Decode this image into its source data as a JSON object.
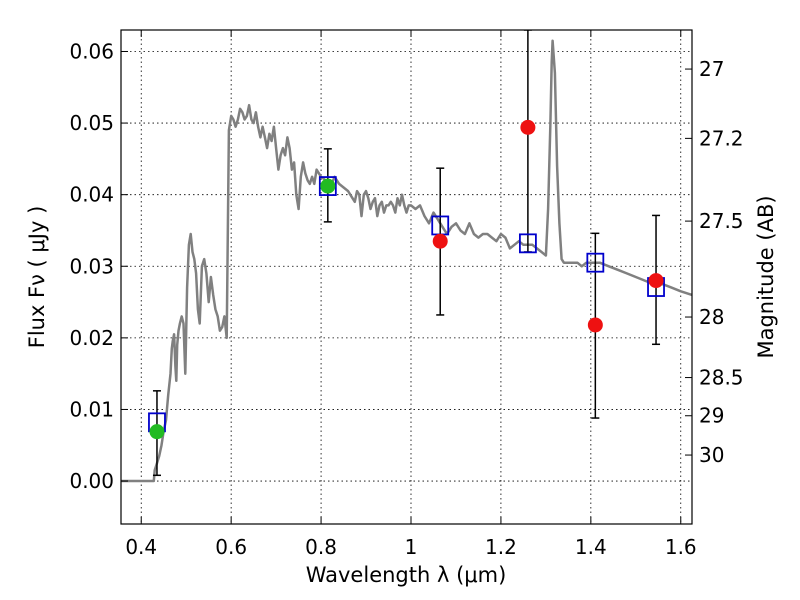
{
  "chart_data": {
    "type": "scatter",
    "title": "",
    "xlabel": "Wavelength  λ (μm)",
    "ylabel": "Flux  Fν  ( μJy )",
    "y2label": "Magnitude (AB)",
    "xlim": [
      0.355,
      1.625
    ],
    "ylim": [
      -0.006,
      0.063
    ],
    "grid": true,
    "x_ticks": [
      {
        "v": 0.4,
        "label": "0.4"
      },
      {
        "v": 0.6,
        "label": "0.6"
      },
      {
        "v": 0.8,
        "label": "0.8"
      },
      {
        "v": 1.0,
        "label": "1"
      },
      {
        "v": 1.2,
        "label": "1.2"
      },
      {
        "v": 1.4,
        "label": "1.4"
      },
      {
        "v": 1.6,
        "label": "1.6"
      }
    ],
    "y_ticks": [
      {
        "v": 0.0,
        "label": "0.00"
      },
      {
        "v": 0.01,
        "label": "0.01"
      },
      {
        "v": 0.02,
        "label": "0.02"
      },
      {
        "v": 0.03,
        "label": "0.03"
      },
      {
        "v": 0.04,
        "label": "0.04"
      },
      {
        "v": 0.05,
        "label": "0.05"
      },
      {
        "v": 0.06,
        "label": "0.06"
      }
    ],
    "y2_ticks": [
      {
        "mag": 27,
        "label": "27"
      },
      {
        "mag": 27.2,
        "label": "27.2"
      },
      {
        "mag": 27.5,
        "label": "27.5"
      },
      {
        "mag": 28,
        "label": "28"
      },
      {
        "mag": 28.5,
        "label": "28.5"
      },
      {
        "mag": 29,
        "label": "29"
      },
      {
        "mag": 30,
        "label": "30"
      }
    ],
    "series": [
      {
        "kind": "line",
        "color": "#808080",
        "x": [
          0.355,
          0.428,
          0.43,
          0.435,
          0.44,
          0.445,
          0.45,
          0.455,
          0.46,
          0.465,
          0.468,
          0.47,
          0.473,
          0.476,
          0.478,
          0.48,
          0.483,
          0.486,
          0.49,
          0.494,
          0.498,
          0.502,
          0.506,
          0.51,
          0.514,
          0.518,
          0.522,
          0.526,
          0.53,
          0.535,
          0.54,
          0.545,
          0.55,
          0.555,
          0.56,
          0.565,
          0.57,
          0.575,
          0.58,
          0.585,
          0.59,
          0.595,
          0.6,
          0.605,
          0.61,
          0.615,
          0.62,
          0.625,
          0.63,
          0.635,
          0.64,
          0.645,
          0.65,
          0.655,
          0.66,
          0.665,
          0.67,
          0.675,
          0.68,
          0.685,
          0.69,
          0.695,
          0.7,
          0.705,
          0.71,
          0.715,
          0.72,
          0.725,
          0.73,
          0.735,
          0.74,
          0.745,
          0.75,
          0.755,
          0.76,
          0.765,
          0.77,
          0.775,
          0.78,
          0.785,
          0.79,
          0.795,
          0.8,
          0.81,
          0.82,
          0.83,
          0.84,
          0.85,
          0.86,
          0.87,
          0.875,
          0.88,
          0.885,
          0.89,
          0.895,
          0.9,
          0.905,
          0.91,
          0.915,
          0.92,
          0.925,
          0.93,
          0.935,
          0.94,
          0.945,
          0.95,
          0.955,
          0.96,
          0.965,
          0.97,
          0.975,
          0.98,
          0.985,
          0.99,
          0.995,
          1.0,
          1.01,
          1.02,
          1.03,
          1.04,
          1.05,
          1.06,
          1.07,
          1.08,
          1.09,
          1.1,
          1.11,
          1.12,
          1.13,
          1.14,
          1.15,
          1.16,
          1.17,
          1.18,
          1.19,
          1.2,
          1.21,
          1.22,
          1.23,
          1.24,
          1.25,
          1.26,
          1.27,
          1.28,
          1.29,
          1.3,
          1.305,
          1.31,
          1.313,
          1.315,
          1.32,
          1.325,
          1.33,
          1.335,
          1.34,
          1.35,
          1.36,
          1.37,
          1.38,
          1.39,
          1.4,
          1.42,
          1.44,
          1.46,
          1.48,
          1.5,
          1.52,
          1.54,
          1.56,
          1.58,
          1.6,
          1.625
        ],
        "y": [
          0.0,
          0.0,
          0.0015,
          0.0025,
          0.0035,
          0.005,
          0.007,
          0.0085,
          0.012,
          0.015,
          0.0185,
          0.0195,
          0.0205,
          0.016,
          0.014,
          0.019,
          0.021,
          0.022,
          0.023,
          0.022,
          0.015,
          0.027,
          0.033,
          0.0345,
          0.032,
          0.031,
          0.029,
          0.024,
          0.022,
          0.03,
          0.031,
          0.029,
          0.025,
          0.0285,
          0.026,
          0.024,
          0.023,
          0.021,
          0.0215,
          0.023,
          0.02,
          0.049,
          0.051,
          0.0505,
          0.0495,
          0.0505,
          0.052,
          0.0515,
          0.0505,
          0.051,
          0.0525,
          0.0505,
          0.05,
          0.0515,
          0.0495,
          0.048,
          0.0495,
          0.048,
          0.0465,
          0.0485,
          0.0475,
          0.0495,
          0.0465,
          0.0435,
          0.0455,
          0.0465,
          0.0455,
          0.048,
          0.0465,
          0.0435,
          0.0445,
          0.04,
          0.038,
          0.0425,
          0.0445,
          0.043,
          0.042,
          0.0415,
          0.0425,
          0.0415,
          0.0435,
          0.043,
          0.0425,
          0.042,
          0.041,
          0.0425,
          0.0415,
          0.041,
          0.0405,
          0.0395,
          0.039,
          0.0405,
          0.04,
          0.037,
          0.04,
          0.0405,
          0.0395,
          0.038,
          0.039,
          0.0395,
          0.037,
          0.0385,
          0.039,
          0.0375,
          0.0385,
          0.0385,
          0.039,
          0.0385,
          0.0375,
          0.0395,
          0.0385,
          0.04,
          0.0385,
          0.0375,
          0.0385,
          0.0385,
          0.038,
          0.0385,
          0.037,
          0.036,
          0.0375,
          0.0365,
          0.0355,
          0.0345,
          0.0355,
          0.036,
          0.035,
          0.0345,
          0.036,
          0.0345,
          0.034,
          0.0345,
          0.0345,
          0.034,
          0.0335,
          0.0345,
          0.034,
          0.0325,
          0.033,
          0.0335,
          0.033,
          0.033,
          0.033,
          0.0325,
          0.032,
          0.0315,
          0.038,
          0.05,
          0.0585,
          0.0615,
          0.057,
          0.044,
          0.036,
          0.031,
          0.0305,
          0.0305,
          0.0305,
          0.0305,
          0.03,
          0.0305,
          0.0305,
          0.0305,
          0.03,
          0.0295,
          0.029,
          0.0285,
          0.028,
          0.0275,
          0.0275,
          0.027,
          0.0265,
          0.026
        ]
      },
      {
        "kind": "errorbar",
        "color": "#000000",
        "x": [
          0.435,
          0.815,
          1.065,
          1.26,
          1.41,
          1.545
        ],
        "low": [
          0.0008,
          0.0362,
          0.0232,
          0.032,
          0.0088,
          0.0191
        ],
        "high": [
          0.0126,
          0.0464,
          0.0437,
          0.063,
          0.0346,
          0.0371
        ]
      },
      {
        "kind": "model-square",
        "color": "#0000cc",
        "x": [
          0.435,
          0.815,
          1.065,
          1.26,
          1.41,
          1.545
        ],
        "y": [
          0.0082,
          0.0412,
          0.0357,
          0.0332,
          0.0305,
          0.0271
        ]
      },
      {
        "kind": "point",
        "color": "#22bb22",
        "x": [
          0.435,
          0.815
        ],
        "y": [
          0.0069,
          0.0412
        ]
      },
      {
        "kind": "point",
        "color": "#ee1111",
        "x": [
          1.065,
          1.26,
          1.41,
          1.545
        ],
        "y": [
          0.0335,
          0.0494,
          0.0218,
          0.028
        ]
      }
    ]
  }
}
